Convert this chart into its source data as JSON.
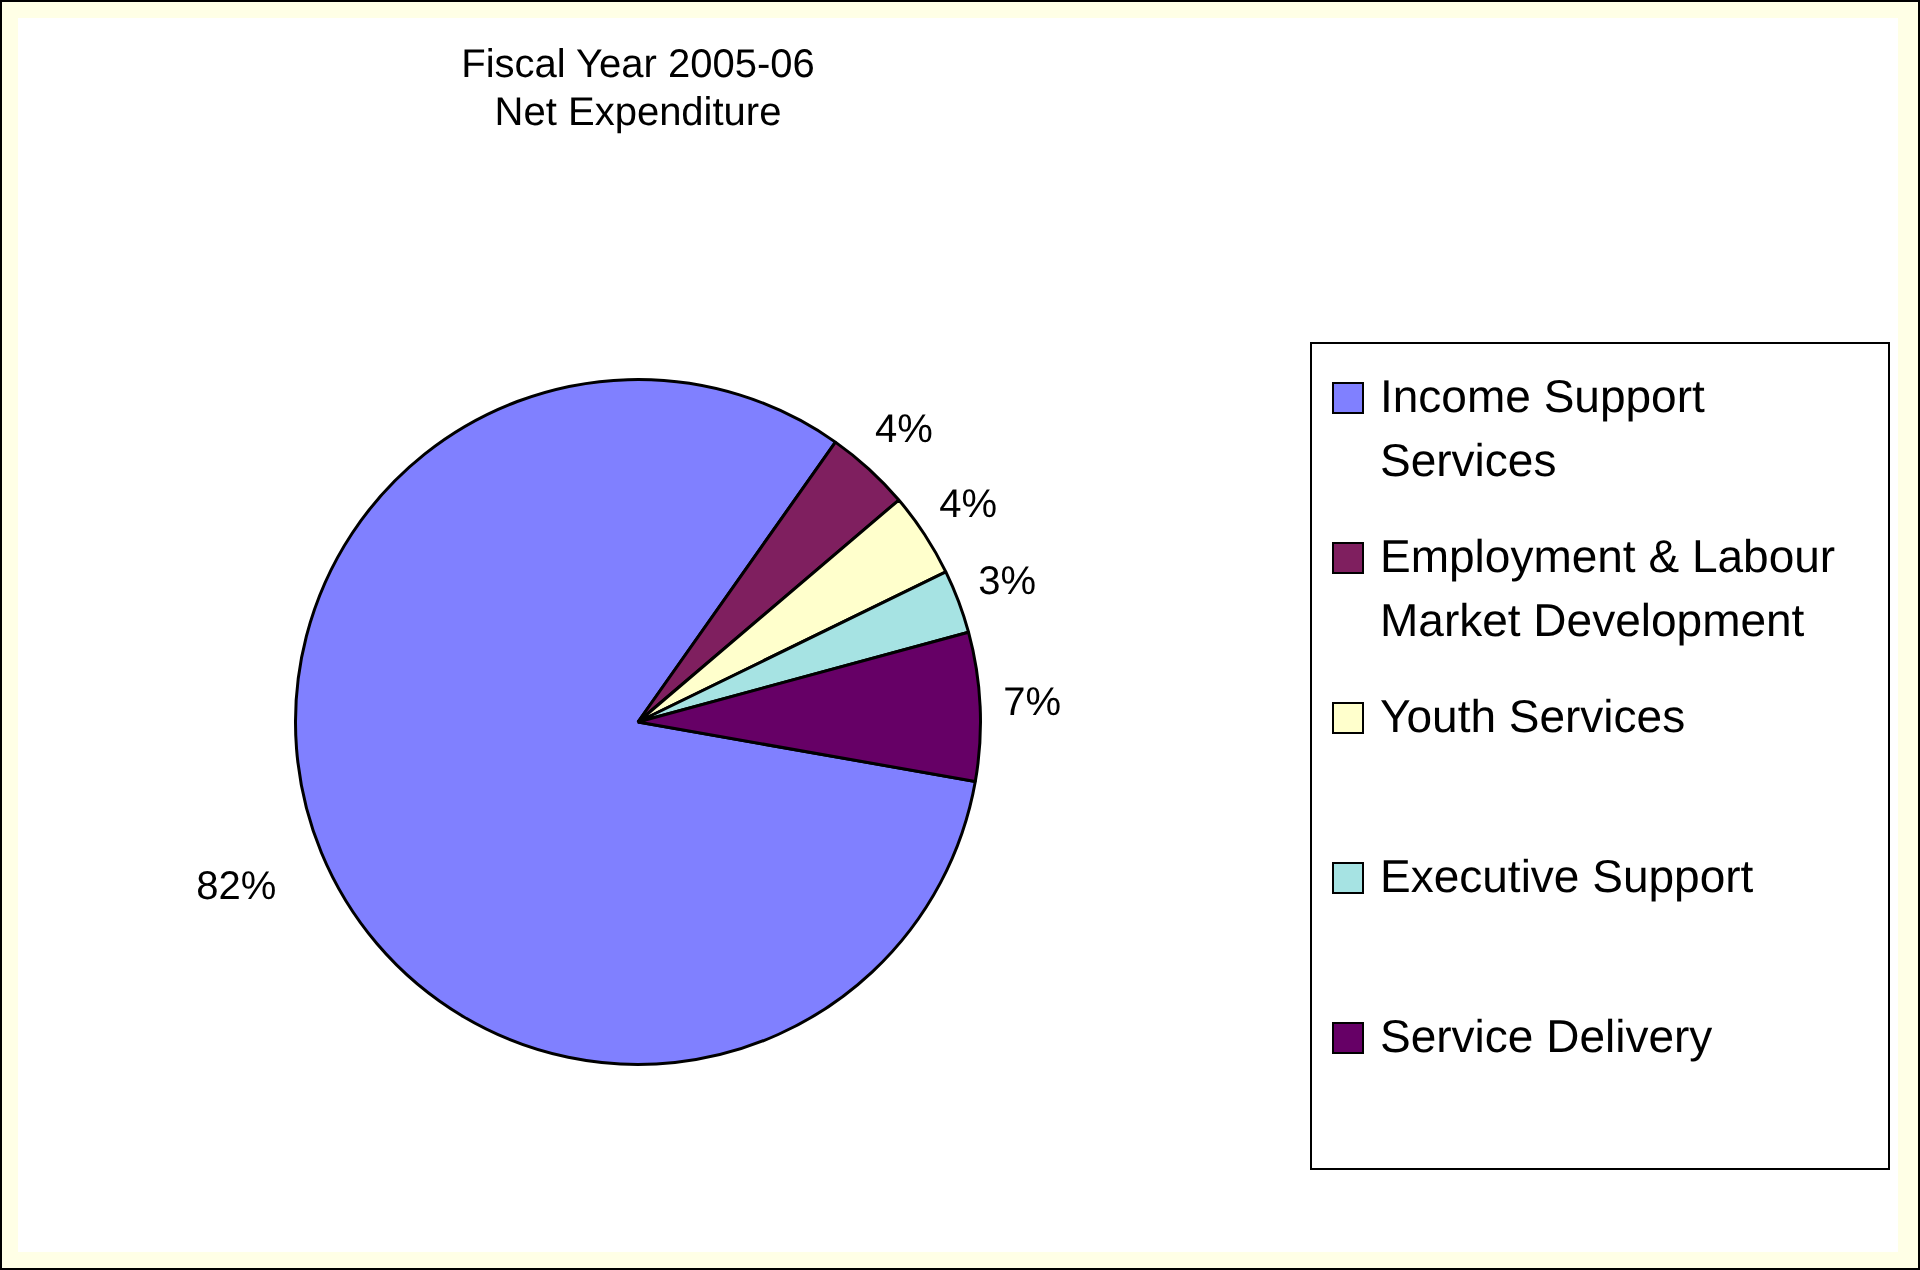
{
  "chart_data": {
    "type": "pie",
    "title": [
      "Fiscal Year 2005-06",
      "Net Expenditure"
    ],
    "categories": [
      "Income Support Services",
      "Employment & Labour Market Development",
      "Youth Services",
      "Executive Support",
      "Service Delivery"
    ],
    "values": [
      82,
      4,
      4,
      3,
      7
    ],
    "colors": [
      "#8080ff",
      "#7f1f5f",
      "#ffffcc",
      "#a6e3e3",
      "#660066"
    ],
    "value_labels": [
      "82%",
      "4%",
      "4%",
      "3%",
      "7%"
    ],
    "legend": "right"
  }
}
